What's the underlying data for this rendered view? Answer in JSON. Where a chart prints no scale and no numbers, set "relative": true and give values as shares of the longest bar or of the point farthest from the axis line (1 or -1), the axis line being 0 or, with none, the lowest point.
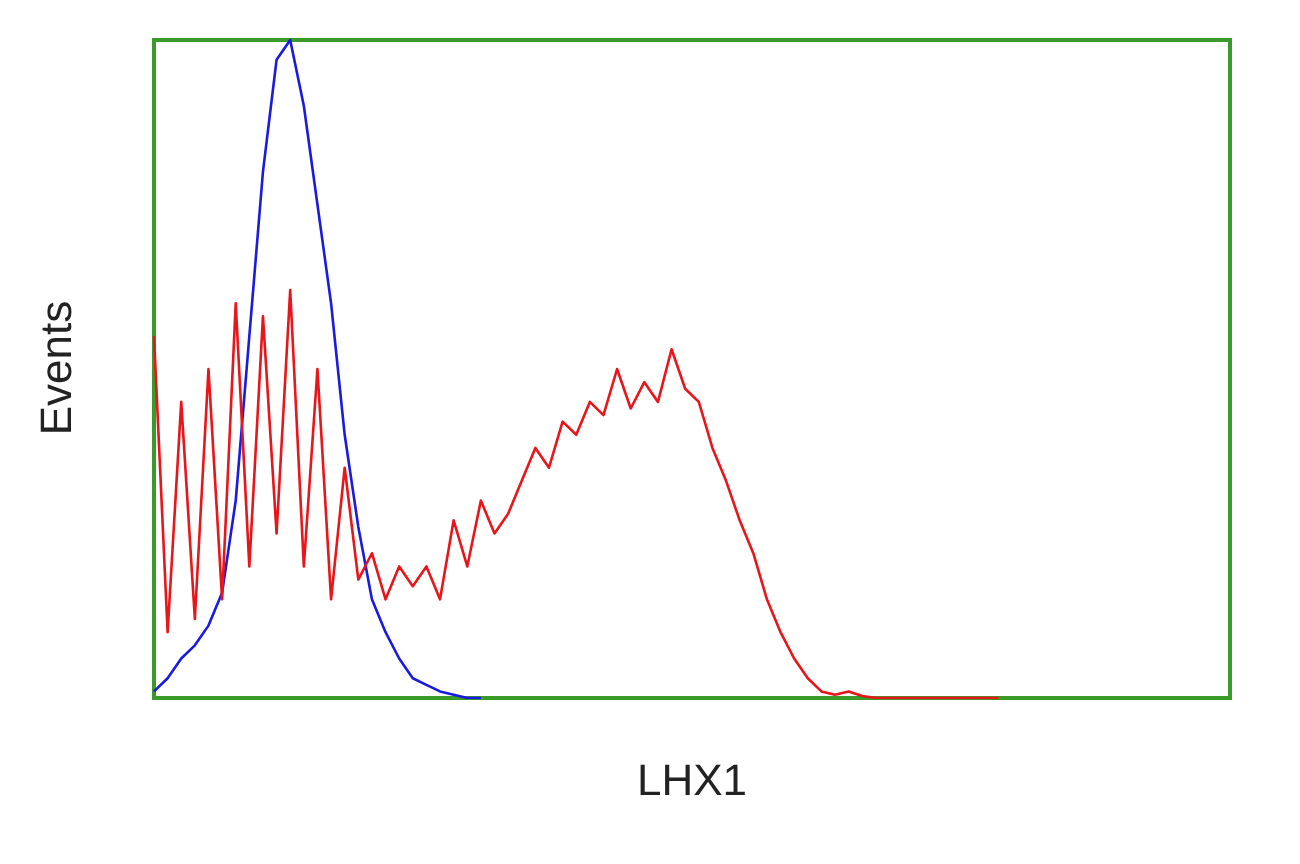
{
  "chart_data": {
    "type": "line",
    "xlabel": "LHX1",
    "ylabel": "Events",
    "relative": true,
    "categories": [
      null,
      null,
      null,
      null,
      null,
      null,
      null,
      null,
      null,
      null,
      null,
      null,
      null,
      null,
      null,
      null,
      null,
      null,
      null,
      null,
      null,
      null,
      null,
      null,
      null,
      null,
      null,
      null,
      null,
      null,
      null,
      null,
      null,
      null,
      null,
      null,
      null,
      null,
      null,
      null,
      null,
      null,
      null,
      null,
      null,
      null,
      null,
      null,
      null,
      null,
      null,
      null,
      null,
      null,
      null,
      null,
      null,
      null,
      null,
      null,
      null,
      null,
      null,
      null,
      null,
      null,
      null,
      null,
      null,
      null,
      null,
      null,
      null,
      null,
      null,
      null,
      null,
      null,
      null,
      null
    ],
    "series": [
      {
        "color": "#1a1ae0",
        "values": [
          0.01,
          0.03,
          0.06,
          0.08,
          0.11,
          0.16,
          0.3,
          0.55,
          0.8,
          0.97,
          1.0,
          0.9,
          0.75,
          0.6,
          0.4,
          0.26,
          0.15,
          0.1,
          0.06,
          0.03,
          0.02,
          0.01,
          0.005,
          0,
          0,
          null,
          null,
          null,
          null,
          null,
          null,
          null,
          null,
          null,
          null,
          null,
          null,
          null,
          null,
          null,
          null,
          null,
          null,
          null,
          null,
          null,
          null,
          null,
          null,
          null,
          null,
          null,
          null,
          null,
          null,
          null,
          null,
          null,
          null,
          null,
          null,
          null,
          null,
          null,
          null,
          null,
          null,
          null,
          null,
          null,
          null,
          null,
          null,
          null,
          null,
          null,
          null,
          null,
          null,
          null
        ]
      },
      {
        "color": "#e8161a",
        "values": [
          0.55,
          0.1,
          0.45,
          0.12,
          0.5,
          0.15,
          0.6,
          0.2,
          0.58,
          0.25,
          0.62,
          0.2,
          0.5,
          0.15,
          0.35,
          0.18,
          0.22,
          0.15,
          0.2,
          0.17,
          0.2,
          0.15,
          0.27,
          0.2,
          0.3,
          0.25,
          0.28,
          0.33,
          0.38,
          0.35,
          0.42,
          0.4,
          0.45,
          0.43,
          0.5,
          0.44,
          0.48,
          0.45,
          0.53,
          0.47,
          0.45,
          0.38,
          0.33,
          0.27,
          0.22,
          0.15,
          0.1,
          0.06,
          0.03,
          0.01,
          0.005,
          0.01,
          0.003,
          0,
          0,
          0,
          0,
          0,
          0,
          0,
          0,
          0,
          0,
          null,
          null,
          null,
          null,
          null,
          null,
          null,
          null,
          null,
          null,
          null,
          null,
          null,
          null,
          null,
          null,
          null
        ]
      }
    ]
  }
}
